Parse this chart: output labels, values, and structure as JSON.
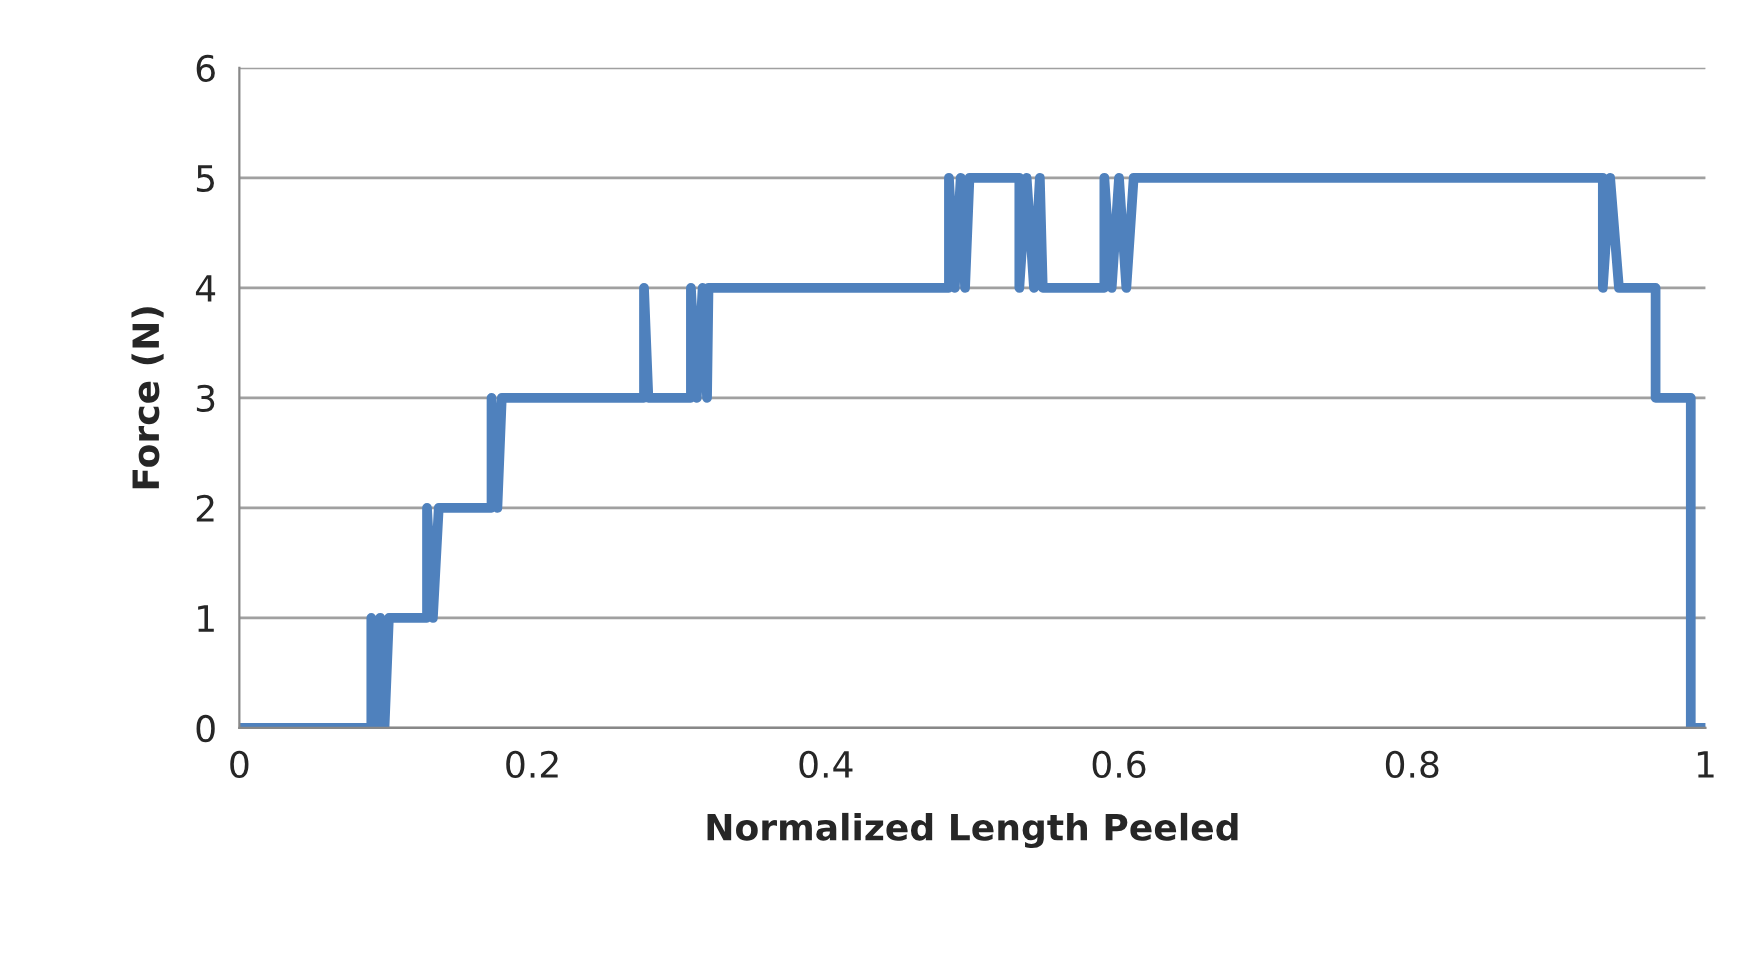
{
  "chart_data": {
    "type": "line",
    "xlabel": "Normalized Length Peeled",
    "ylabel": "Force (N)",
    "series": [
      {
        "color": "#4f81bd",
        "x": [
          0,
          0.09,
          0.09,
          0.093,
          0.096,
          0.099,
          0.102,
          0.128,
          0.128,
          0.132,
          0.136,
          0.172,
          0.172,
          0.176,
          0.179,
          0.276,
          0.276,
          0.279,
          0.308,
          0.308,
          0.312,
          0.316,
          0.319,
          0.32,
          0.484,
          0.484,
          0.488,
          0.492,
          0.495,
          0.498,
          0.532,
          0.532,
          0.537,
          0.542,
          0.546,
          0.548,
          0.59,
          0.59,
          0.595,
          0.6,
          0.605,
          0.61,
          0.93,
          0.93,
          0.935,
          0.941,
          0.966,
          0.966,
          0.99,
          0.99,
          1.0
        ],
        "values": [
          0,
          0,
          1,
          0,
          1,
          0,
          1,
          1,
          2,
          1,
          2,
          2,
          3,
          2,
          3,
          3,
          4,
          3,
          3,
          4,
          3,
          4,
          3,
          4,
          4,
          5,
          4,
          5,
          4,
          5,
          5,
          4,
          5,
          4,
          5,
          4,
          4,
          5,
          4,
          5,
          4,
          5,
          5,
          4,
          5,
          4,
          4,
          3,
          3,
          0,
          0
        ]
      }
    ],
    "xlim": [
      0,
      1
    ],
    "xticks": [
      0,
      {
        "value": 0.2,
        "label": "0.2"
      },
      {
        "value": 0.4,
        "label": "0.4"
      },
      {
        "value": 0.6,
        "label": "0.6"
      },
      {
        "value": 0.8,
        "label": "0.8"
      },
      1
    ],
    "ylim": [
      0,
      6
    ],
    "yticks": [
      0,
      1,
      2,
      3,
      4,
      5,
      6
    ],
    "grid": "y",
    "legend": false,
    "marker": "none",
    "line_style": "solid"
  }
}
